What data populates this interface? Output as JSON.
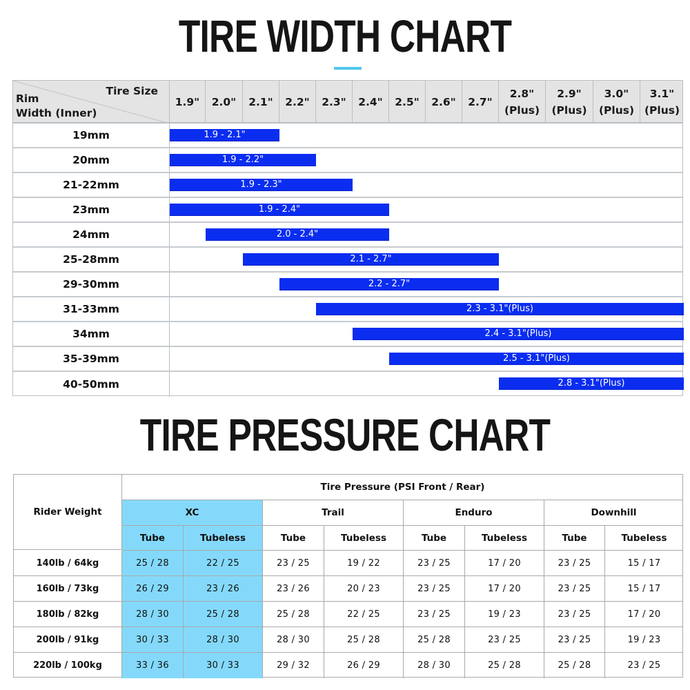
{
  "width_chart": {
    "title": "TIRE WIDTH CHART",
    "accent_color": "#4fc8ee",
    "bar_color": "#0a2df0",
    "corner": {
      "top_right": "Tire Size",
      "bottom_left_line1": "Rim",
      "bottom_left_line2": "Width (Inner)"
    },
    "columns": [
      "1.9\"",
      "2.0\"",
      "2.1\"",
      "2.2\"",
      "2.3\"",
      "2.4\"",
      "2.5\"",
      "2.6\"",
      "2.7\"",
      "2.8\"\n(Plus)",
      "2.9\"\n(Plus)",
      "3.0\"\n(Plus)",
      "3.1\"\n(Plus)"
    ],
    "rows": [
      {
        "rim": "19mm",
        "label": "1.9 - 2.1\"",
        "from": "1.9",
        "to": "2.1"
      },
      {
        "rim": "20mm",
        "label": "1.9 - 2.2\"",
        "from": "1.9",
        "to": "2.2"
      },
      {
        "rim": "21-22mm",
        "label": "1.9 - 2.3\"",
        "from": "1.9",
        "to": "2.3"
      },
      {
        "rim": "23mm",
        "label": "1.9 - 2.4\"",
        "from": "1.9",
        "to": "2.4"
      },
      {
        "rim": "24mm",
        "label": "2.0 - 2.4\"",
        "from": "2.0",
        "to": "2.4"
      },
      {
        "rim": "25-28mm",
        "label": "2.1 - 2.7\"",
        "from": "2.1",
        "to": "2.7"
      },
      {
        "rim": "29-30mm",
        "label": "2.2 - 2.7\"",
        "from": "2.2",
        "to": "2.7"
      },
      {
        "rim": "31-33mm",
        "label": "2.3 - 3.1\"(Plus)",
        "from": "2.3",
        "to": "3.1"
      },
      {
        "rim": "34mm",
        "label": "2.4 - 3.1\"(Plus)",
        "from": "2.4",
        "to": "3.1"
      },
      {
        "rim": "35-39mm",
        "label": "2.5 - 3.1\"(Plus)",
        "from": "2.5",
        "to": "3.1"
      },
      {
        "rim": "40-50mm",
        "label": "2.8 - 3.1\"(Plus)",
        "from": "2.8",
        "to": "3.1"
      }
    ]
  },
  "pressure_chart": {
    "title": "TIRE PRESSURE CHART",
    "highlight_color": "#84d9fb",
    "rider_weight_label": "Rider Weight",
    "super_header": "Tire Pressure (PSI Front / Rear)",
    "groups": [
      "XC",
      "Trail",
      "Enduro",
      "Downhill"
    ],
    "sub_headers": [
      "Tube",
      "Tubeless",
      "Tube",
      "Tubeless",
      "Tube",
      "Tubeless",
      "Tube",
      "Tubeless"
    ],
    "rows": [
      {
        "weight": "140lb / 64kg",
        "values": [
          "25 / 28",
          "22 / 25",
          "23 / 25",
          "19 / 22",
          "23 / 25",
          "17 / 20",
          "23 / 25",
          "15 / 17"
        ]
      },
      {
        "weight": "160lb / 73kg",
        "values": [
          "26 / 29",
          "23 / 26",
          "23 / 26",
          "20 / 23",
          "23 / 25",
          "17 / 20",
          "23 / 25",
          "15 / 17"
        ]
      },
      {
        "weight": "180lb / 82kg",
        "values": [
          "28 / 30",
          "25 / 28",
          "25 / 28",
          "22 / 25",
          "23 / 25",
          "19 / 23",
          "23 / 25",
          "17 / 20"
        ]
      },
      {
        "weight": "200lb / 91kg",
        "values": [
          "30 / 33",
          "28 / 30",
          "28 / 30",
          "25 / 28",
          "25 / 28",
          "23 / 25",
          "23 / 25",
          "19 / 23"
        ]
      },
      {
        "weight": "220lb / 100kg",
        "values": [
          "33 / 36",
          "30 / 33",
          "29 / 32",
          "26 / 29",
          "28 / 30",
          "25 / 28",
          "25 / 28",
          "23 / 25"
        ]
      }
    ]
  },
  "chart_data": [
    {
      "type": "bar",
      "orientation": "horizontal-range",
      "title": "TIRE WIDTH CHART",
      "xlabel": "Tire Size",
      "ylabel": "Rim Width (Inner)",
      "x_ticks": [
        "1.9\"",
        "2.0\"",
        "2.1\"",
        "2.2\"",
        "2.3\"",
        "2.4\"",
        "2.5\"",
        "2.6\"",
        "2.7\"",
        "2.8\" (Plus)",
        "2.9\" (Plus)",
        "3.0\" (Plus)",
        "3.1\" (Plus)"
      ],
      "categories": [
        "19mm",
        "20mm",
        "21-22mm",
        "23mm",
        "24mm",
        "25-28mm",
        "29-30mm",
        "31-33mm",
        "34mm",
        "35-39mm",
        "40-50mm"
      ],
      "ranges": [
        [
          1.9,
          2.1
        ],
        [
          1.9,
          2.2
        ],
        [
          1.9,
          2.3
        ],
        [
          1.9,
          2.4
        ],
        [
          2.0,
          2.4
        ],
        [
          2.1,
          2.7
        ],
        [
          2.2,
          2.7
        ],
        [
          2.3,
          3.1
        ],
        [
          2.4,
          3.1
        ],
        [
          2.5,
          3.1
        ],
        [
          2.8,
          3.1
        ]
      ],
      "labels": [
        "1.9 - 2.1\"",
        "1.9 - 2.2\"",
        "1.9 - 2.3\"",
        "1.9 - 2.4\"",
        "2.0 - 2.4\"",
        "2.1 - 2.7\"",
        "2.2 - 2.7\"",
        "2.3 - 3.1\"(Plus)",
        "2.4 - 3.1\"(Plus)",
        "2.5 - 3.1\"(Plus)",
        "2.8 - 3.1\"(Plus)"
      ],
      "xlim": [
        1.9,
        3.1
      ],
      "grid": true
    },
    {
      "type": "table",
      "title": "TIRE PRESSURE CHART",
      "subtitle": "Tire Pressure (PSI Front / Rear)",
      "row_header": "Rider Weight",
      "rows": [
        "140lb / 64kg",
        "160lb / 73kg",
        "180lb / 82kg",
        "200lb / 91kg",
        "220lb / 100kg"
      ],
      "columns": [
        "XC Tube",
        "XC Tubeless",
        "Trail Tube",
        "Trail Tubeless",
        "Enduro Tube",
        "Enduro Tubeless",
        "Downhill Tube",
        "Downhill Tubeless"
      ],
      "series": [
        {
          "name": "XC Tube",
          "front": [
            25,
            26,
            28,
            30,
            33
          ],
          "rear": [
            28,
            29,
            30,
            33,
            36
          ]
        },
        {
          "name": "XC Tubeless",
          "front": [
            22,
            23,
            25,
            28,
            30
          ],
          "rear": [
            25,
            26,
            28,
            30,
            33
          ]
        },
        {
          "name": "Trail Tube",
          "front": [
            23,
            23,
            25,
            28,
            29
          ],
          "rear": [
            25,
            26,
            28,
            30,
            32
          ]
        },
        {
          "name": "Trail Tubeless",
          "front": [
            19,
            20,
            22,
            25,
            26
          ],
          "rear": [
            22,
            23,
            25,
            28,
            29
          ]
        },
        {
          "name": "Enduro Tube",
          "front": [
            23,
            23,
            23,
            25,
            28
          ],
          "rear": [
            25,
            25,
            25,
            28,
            30
          ]
        },
        {
          "name": "Enduro Tubeless",
          "front": [
            17,
            17,
            19,
            23,
            25
          ],
          "rear": [
            20,
            20,
            23,
            25,
            28
          ]
        },
        {
          "name": "Downhill Tube",
          "front": [
            23,
            23,
            23,
            23,
            25
          ],
          "rear": [
            25,
            25,
            25,
            25,
            28
          ]
        },
        {
          "name": "Downhill Tubeless",
          "front": [
            15,
            15,
            17,
            19,
            23
          ],
          "rear": [
            17,
            17,
            20,
            23,
            25
          ]
        }
      ]
    }
  ]
}
